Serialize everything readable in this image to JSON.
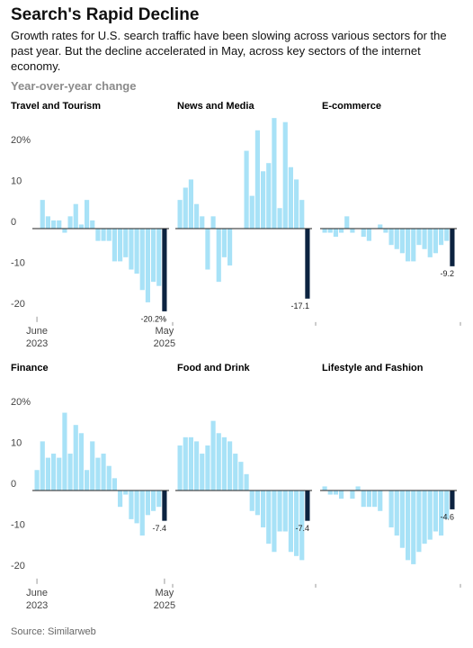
{
  "title": "Search's Rapid Decline",
  "subtitle": "Growth rates for U.S. search traffic have been slowing across various sectors for the past year. But the decline accelerated in May, across key sectors of the internet economy.",
  "y_label": "Year-over-year change",
  "source": "Source: Similarweb",
  "chart_data": [
    {
      "type": "bar",
      "title": "Travel and Tourism",
      "color": "#a8e2f7",
      "highlight_color": "#0c2340",
      "categories": [
        "June 2023",
        null,
        null,
        null,
        null,
        null,
        null,
        null,
        null,
        null,
        null,
        null,
        null,
        null,
        null,
        null,
        null,
        null,
        null,
        null,
        null,
        null,
        null,
        "May 2025"
      ],
      "values": [
        0,
        7,
        3,
        2,
        2,
        -1,
        3,
        6,
        1,
        7,
        2,
        -3,
        -3,
        -3,
        -8,
        -8,
        -7,
        -10,
        -11,
        -15,
        -18,
        -13,
        -14,
        -20.2
      ],
      "value_labels": [
        null,
        null,
        null,
        null,
        null,
        null,
        null,
        null,
        null,
        null,
        null,
        null,
        null,
        null,
        null,
        null,
        null,
        null,
        null,
        null,
        null,
        null,
        null,
        "-20.2%"
      ],
      "ylim": [
        -21.5,
        27
      ],
      "yticks": [
        {
          "value": 20,
          "label": "20%"
        },
        10,
        0,
        -10,
        -20
      ]
    },
    {
      "type": "bar",
      "title": "News and Media",
      "color": "#a8e2f7",
      "highlight_color": "#0c2340",
      "values": [
        7,
        10,
        12,
        6,
        3,
        -10,
        3,
        -13,
        -7,
        -9,
        0,
        0,
        19,
        8,
        24,
        14,
        16,
        27,
        5,
        26,
        15,
        12,
        7,
        -17.1
      ],
      "value_labels": [
        null,
        null,
        null,
        null,
        null,
        null,
        null,
        null,
        null,
        null,
        null,
        null,
        null,
        null,
        null,
        null,
        null,
        null,
        null,
        null,
        null,
        null,
        null,
        "-17.1"
      ],
      "ylim": [
        -21.5,
        27
      ]
    },
    {
      "type": "bar",
      "title": "E-commerce",
      "color": "#a8e2f7",
      "highlight_color": "#0c2340",
      "values": [
        -1,
        -1,
        -2,
        -1,
        3,
        -1,
        0,
        -2,
        -3,
        0,
        1,
        -1,
        -4,
        -5,
        -6,
        -8,
        -8,
        -4,
        -5,
        -7,
        -6,
        -4,
        -3,
        -9.2
      ],
      "value_labels": [
        null,
        null,
        null,
        null,
        null,
        null,
        null,
        null,
        null,
        null,
        null,
        null,
        null,
        null,
        null,
        null,
        null,
        null,
        null,
        null,
        null,
        null,
        null,
        "-9.2"
      ],
      "ylim": [
        -21.5,
        27
      ]
    },
    {
      "type": "bar",
      "title": "Finance",
      "color": "#a8e2f7",
      "highlight_color": "#0c2340",
      "categories": [
        "June 2023",
        null,
        null,
        null,
        null,
        null,
        null,
        null,
        null,
        null,
        null,
        null,
        null,
        null,
        null,
        null,
        null,
        null,
        null,
        null,
        null,
        null,
        null,
        "May 2025"
      ],
      "values": [
        5,
        12,
        8,
        9,
        8,
        19,
        9,
        16,
        14,
        5,
        12,
        8,
        9,
        6,
        3,
        -4,
        -1,
        -7,
        -8,
        -11,
        -6,
        -5,
        -4,
        -7.4
      ],
      "value_labels": [
        null,
        null,
        null,
        null,
        null,
        null,
        null,
        null,
        null,
        null,
        null,
        null,
        null,
        null,
        null,
        null,
        null,
        null,
        null,
        null,
        null,
        null,
        null,
        "-7.4"
      ],
      "ylim": [
        -21.5,
        27
      ],
      "yticks": [
        {
          "value": 20,
          "label": "20%"
        },
        10,
        0,
        -10,
        -20
      ]
    },
    {
      "type": "bar",
      "title": "Food and Drink",
      "color": "#a8e2f7",
      "highlight_color": "#0c2340",
      "values": [
        11,
        13,
        13,
        12,
        9,
        11,
        17,
        14,
        13,
        12,
        9,
        7,
        4,
        -5,
        -6,
        -9,
        -13,
        -15,
        -10,
        -10,
        -15,
        -16,
        -17,
        -7.4
      ],
      "value_labels": [
        null,
        null,
        null,
        null,
        null,
        null,
        null,
        null,
        null,
        null,
        null,
        null,
        null,
        null,
        null,
        null,
        null,
        null,
        null,
        null,
        null,
        null,
        null,
        "-7.4"
      ],
      "ylim": [
        -21.5,
        27
      ]
    },
    {
      "type": "bar",
      "title": "Lifestyle and Fashion",
      "color": "#a8e2f7",
      "highlight_color": "#0c2340",
      "values": [
        1,
        -1,
        -1,
        -2,
        0,
        -2,
        1,
        -4,
        -4,
        -4,
        -5,
        0,
        -9,
        -11,
        -14,
        -17,
        -18,
        -15,
        -13,
        -12,
        -10,
        -11,
        -7,
        -4.6
      ],
      "value_labels": [
        null,
        null,
        null,
        null,
        null,
        null,
        null,
        null,
        null,
        null,
        null,
        null,
        null,
        null,
        null,
        null,
        null,
        null,
        null,
        null,
        null,
        null,
        null,
        "-4.6"
      ],
      "ylim": [
        -21.5,
        27
      ]
    }
  ]
}
